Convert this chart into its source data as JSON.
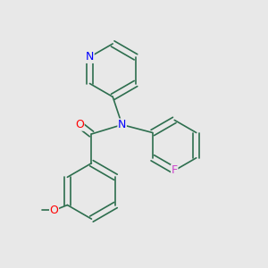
{
  "background_color": "#e8e8e8",
  "bond_color": "#2d6e4e",
  "atom_colors": {
    "N": "#0000ff",
    "O": "#ff0000",
    "F": "#cc44cc",
    "C": "#2d6e4e"
  },
  "font_size_atom": 9,
  "line_width": 1.2
}
